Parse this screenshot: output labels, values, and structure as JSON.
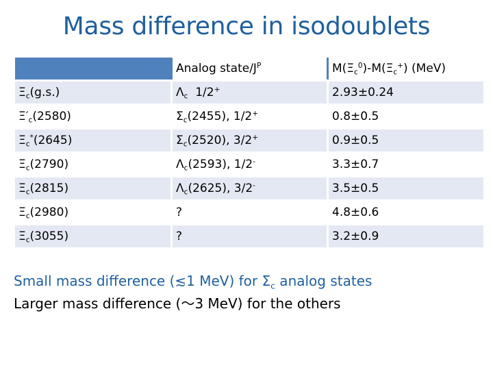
{
  "title": "Mass difference in isodoublets",
  "table": {
    "headers": {
      "state": "",
      "analog": {
        "text": "Analog state/J",
        "sup": "P"
      },
      "massdiff": {
        "pre": "M(Ξ",
        "sub1": "c",
        "sup1": "0",
        "mid": ")-M(Ξ",
        "sub2": "c",
        "sup2": "+",
        "post": ") (MeV)"
      }
    },
    "rows": [
      {
        "state": {
          "pre": "Ξ",
          "sub": "c",
          "sup": "",
          "post": "(g.s.)"
        },
        "analog": {
          "pre": "Λ",
          "sub": "c",
          "mid": "  1/2",
          "sup": "+"
        },
        "diff": "2.93±0.24"
      },
      {
        "state": {
          "pre": "Ξ′",
          "sub": "c",
          "sup": "",
          "post": "(2580)"
        },
        "analog": {
          "pre": "Σ",
          "sub": "c",
          "mid": "(2455), 1/2",
          "sup": "+"
        },
        "diff": "0.8±0.5"
      },
      {
        "state": {
          "pre": "Ξ",
          "sub": "c",
          "sup": "*",
          "post": "(2645)"
        },
        "analog": {
          "pre": "Σ",
          "sub": "c",
          "mid": "(2520), 3/2",
          "sup": "+"
        },
        "diff": "0.9±0.5"
      },
      {
        "state": {
          "pre": "Ξ",
          "sub": "c",
          "sup": "",
          "post": "(2790)"
        },
        "analog": {
          "pre": "Λ",
          "sub": "c",
          "mid": "(2593), 1/2",
          "sup": "-"
        },
        "diff": "3.3±0.7"
      },
      {
        "state": {
          "pre": "Ξ",
          "sub": "c",
          "sup": "",
          "post": "(2815)"
        },
        "analog": {
          "pre": "Λ",
          "sub": "c",
          "mid": "(2625), 3/2",
          "sup": "-"
        },
        "diff": "3.5±0.5"
      },
      {
        "state": {
          "pre": "Ξ",
          "sub": "c",
          "sup": "",
          "post": "(2980)"
        },
        "analog": {
          "pre": "?",
          "sub": "",
          "mid": "",
          "sup": ""
        },
        "diff": "4.8±0.6"
      },
      {
        "state": {
          "pre": "Ξ",
          "sub": "c",
          "sup": "",
          "post": "(3055)"
        },
        "analog": {
          "pre": "?",
          "sub": "",
          "mid": "",
          "sup": ""
        },
        "diff": "3.2±0.9"
      }
    ]
  },
  "notes": {
    "line1": {
      "pre": "Small mass difference (≲1 MeV) for Σ",
      "sub": "c",
      "post": " analog states"
    },
    "line2": "Larger mass difference (〜3 MeV) for the others"
  },
  "colors": {
    "title": "#1f5f9f",
    "header_fill": "#4f81bd",
    "row_band": "#e4e8f2",
    "note_blue": "#1f5f9f"
  }
}
